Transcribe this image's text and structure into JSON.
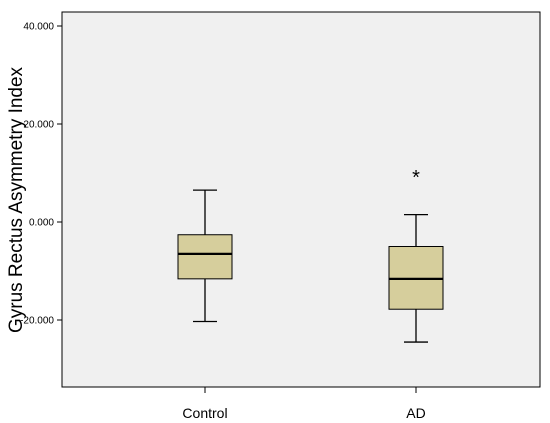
{
  "chart_data": {
    "type": "boxplot",
    "title": "",
    "xlabel": "",
    "ylabel": "Gyrus Rectus Asymmetry Index",
    "ylim": [
      -34,
      44
    ],
    "yticks": [
      -20,
      0,
      20,
      40
    ],
    "ytick_labels": [
      "-20.000",
      "0.000",
      "20.000",
      "40.000"
    ],
    "grid": false,
    "categories": [
      "Control",
      "AD"
    ],
    "boxes": [
      {
        "category": "Control",
        "whisker_low": -20.3,
        "q1": -11.6,
        "median": -6.5,
        "q3": -2.6,
        "whisker_high": 6.5,
        "outliers": []
      },
      {
        "category": "AD",
        "whisker_low": -24.5,
        "q1": -17.8,
        "median": -11.6,
        "q3": -5.0,
        "whisker_high": 1.5,
        "outliers": [
          9.6
        ]
      }
    ],
    "outlier_marker": "*",
    "colors": {
      "box_fill": "#d6ce9c",
      "plot_background": "#f0f0f0",
      "line": "#000000"
    }
  }
}
